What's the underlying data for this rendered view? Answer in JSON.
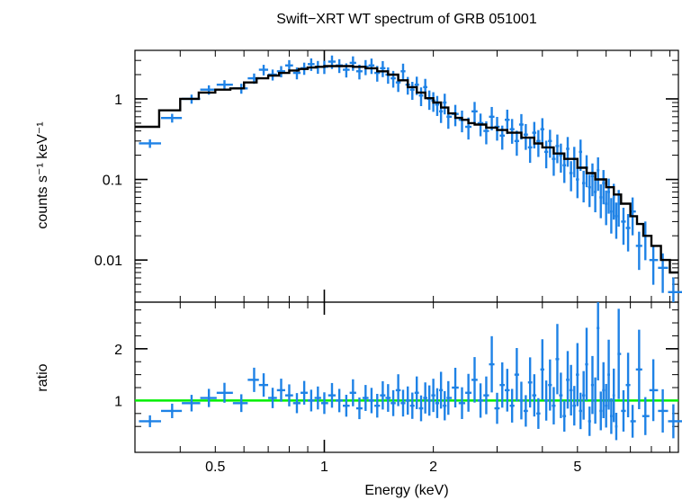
{
  "chart_data": [
    {
      "type": "scatter",
      "panel": "spectrum",
      "title": "Swift−XRT WT spectrum of GRB 051001",
      "xlabel": "Energy (keV)",
      "ylabel": "counts s⁻¹ keV⁻¹",
      "x_scale": "log",
      "y_scale": "log",
      "xlim": [
        0.3,
        9.5
      ],
      "ylim": [
        0.003,
        4.0
      ],
      "y_ticks": [
        "1",
        "0.1",
        "0.01"
      ],
      "grid": false,
      "colors": {
        "data": "#1e82e6",
        "model": "#000000"
      },
      "model": {
        "x": [
          0.3,
          0.35,
          0.4,
          0.45,
          0.5,
          0.55,
          0.6,
          0.65,
          0.7,
          0.75,
          0.8,
          0.85,
          0.9,
          0.95,
          1.0,
          1.1,
          1.2,
          1.3,
          1.4,
          1.5,
          1.6,
          1.7,
          1.8,
          1.9,
          2.0,
          2.1,
          2.2,
          2.3,
          2.4,
          2.5,
          2.6,
          2.8,
          3.0,
          3.2,
          3.5,
          3.8,
          4.0,
          4.3,
          4.6,
          5.0,
          5.3,
          5.6,
          6.0,
          6.3,
          6.6,
          7.0,
          7.3,
          7.6,
          8.0,
          8.5,
          9.0,
          9.5
        ],
        "y": [
          0.45,
          0.72,
          1.0,
          1.2,
          1.3,
          1.35,
          1.6,
          1.8,
          1.95,
          2.1,
          2.25,
          2.35,
          2.45,
          2.5,
          2.55,
          2.55,
          2.5,
          2.4,
          2.2,
          2.0,
          1.7,
          1.4,
          1.2,
          1.02,
          0.9,
          0.78,
          0.66,
          0.58,
          0.55,
          0.5,
          0.48,
          0.44,
          0.41,
          0.38,
          0.33,
          0.28,
          0.25,
          0.21,
          0.18,
          0.14,
          0.12,
          0.1,
          0.08,
          0.065,
          0.05,
          0.035,
          0.028,
          0.02,
          0.015,
          0.01,
          0.007,
          0.005
        ]
      },
      "data": {
        "x": [
          0.33,
          0.38,
          0.43,
          0.48,
          0.53,
          0.59,
          0.64,
          0.68,
          0.72,
          0.76,
          0.8,
          0.84,
          0.88,
          0.92,
          0.96,
          1.0,
          1.05,
          1.1,
          1.15,
          1.2,
          1.25,
          1.3,
          1.35,
          1.4,
          1.45,
          1.5,
          1.55,
          1.6,
          1.65,
          1.7,
          1.75,
          1.8,
          1.85,
          1.9,
          1.95,
          2.0,
          2.05,
          2.1,
          2.15,
          2.2,
          2.3,
          2.4,
          2.5,
          2.6,
          2.7,
          2.8,
          2.9,
          3.0,
          3.1,
          3.2,
          3.3,
          3.4,
          3.5,
          3.6,
          3.7,
          3.8,
          3.9,
          4.0,
          4.1,
          4.2,
          4.3,
          4.4,
          4.5,
          4.6,
          4.7,
          4.8,
          4.9,
          5.0,
          5.1,
          5.2,
          5.3,
          5.4,
          5.5,
          5.6,
          5.7,
          5.8,
          5.9,
          6.0,
          6.1,
          6.2,
          6.3,
          6.4,
          6.5,
          6.7,
          6.9,
          7.1,
          7.4,
          7.7,
          8.1,
          8.6,
          9.2
        ],
        "y": [
          0.28,
          0.58,
          1.0,
          1.3,
          1.5,
          1.35,
          1.8,
          2.3,
          2.0,
          2.2,
          2.6,
          2.1,
          2.4,
          2.7,
          2.5,
          2.5,
          2.9,
          2.6,
          2.3,
          2.8,
          2.2,
          2.5,
          2.6,
          2.1,
          2.4,
          2.0,
          1.8,
          1.6,
          2.2,
          1.5,
          1.3,
          1.5,
          1.1,
          1.4,
          1.0,
          0.95,
          0.85,
          0.7,
          0.9,
          0.6,
          0.65,
          0.55,
          0.45,
          0.7,
          0.5,
          0.4,
          0.6,
          0.45,
          0.35,
          0.55,
          0.42,
          0.3,
          0.48,
          0.36,
          0.25,
          0.38,
          0.3,
          0.42,
          0.22,
          0.3,
          0.18,
          0.26,
          0.2,
          0.15,
          0.24,
          0.12,
          0.18,
          0.1,
          0.22,
          0.09,
          0.14,
          0.08,
          0.11,
          0.07,
          0.13,
          0.06,
          0.09,
          0.05,
          0.07,
          0.04,
          0.06,
          0.035,
          0.05,
          0.03,
          0.025,
          0.04,
          0.015,
          0.02,
          0.01,
          0.008,
          0.004
        ]
      }
    },
    {
      "type": "scatter",
      "panel": "ratio",
      "xlabel": "Energy (keV)",
      "ylabel": "ratio",
      "x_scale": "log",
      "xlim": [
        0.3,
        9.5
      ],
      "ylim": [
        0.0,
        2.9
      ],
      "x_ticks": [
        "0.5",
        "1",
        "2",
        "5"
      ],
      "y_ticks": [
        "2",
        "1"
      ],
      "reference_line": 1.0,
      "grid": false,
      "colors": {
        "data": "#1e82e6",
        "reference_line": "#00ee00"
      },
      "data": {
        "x": [
          0.33,
          0.38,
          0.43,
          0.48,
          0.53,
          0.59,
          0.64,
          0.68,
          0.72,
          0.76,
          0.8,
          0.84,
          0.88,
          0.92,
          0.96,
          1.0,
          1.05,
          1.1,
          1.15,
          1.2,
          1.25,
          1.3,
          1.35,
          1.4,
          1.45,
          1.5,
          1.55,
          1.6,
          1.65,
          1.7,
          1.75,
          1.8,
          1.85,
          1.9,
          1.95,
          2.0,
          2.05,
          2.1,
          2.15,
          2.2,
          2.3,
          2.4,
          2.5,
          2.6,
          2.7,
          2.8,
          2.9,
          3.0,
          3.1,
          3.2,
          3.3,
          3.4,
          3.5,
          3.6,
          3.7,
          3.8,
          3.9,
          4.0,
          4.1,
          4.2,
          4.3,
          4.4,
          4.5,
          4.6,
          4.7,
          4.8,
          4.9,
          5.0,
          5.1,
          5.2,
          5.3,
          5.4,
          5.5,
          5.6,
          5.7,
          5.8,
          5.9,
          6.0,
          6.1,
          6.2,
          6.3,
          6.4,
          6.5,
          6.7,
          6.9,
          7.1,
          7.4,
          7.7,
          8.1,
          8.6,
          9.2
        ],
        "y": [
          0.6,
          0.8,
          0.95,
          1.05,
          1.15,
          0.95,
          1.4,
          1.3,
          1.05,
          1.2,
          1.1,
          0.95,
          1.15,
          1.0,
          1.05,
          0.95,
          1.1,
          1.0,
          0.9,
          1.15,
          0.85,
          1.05,
          1.0,
          0.9,
          1.1,
          1.05,
          0.95,
          1.2,
          0.95,
          1.0,
          0.9,
          1.15,
          0.85,
          1.05,
          1.0,
          1.1,
          0.95,
          1.2,
          0.9,
          1.05,
          1.25,
          0.95,
          1.15,
          1.4,
          1.0,
          1.1,
          1.7,
          0.85,
          1.3,
          1.2,
          0.9,
          1.5,
          1.0,
          0.8,
          1.35,
          1.1,
          0.75,
          1.6,
          1.0,
          1.3,
          0.9,
          1.8,
          1.1,
          0.7,
          1.4,
          1.2,
          0.9,
          1.5,
          0.8,
          1.1,
          1.7,
          0.6,
          1.3,
          1.0,
          2.4,
          0.8,
          1.2,
          0.9,
          1.5,
          0.7,
          1.1,
          0.5,
          1.9,
          0.8,
          1.3,
          0.6,
          1.6,
          0.7,
          1.2,
          0.8,
          0.6
        ]
      }
    }
  ]
}
